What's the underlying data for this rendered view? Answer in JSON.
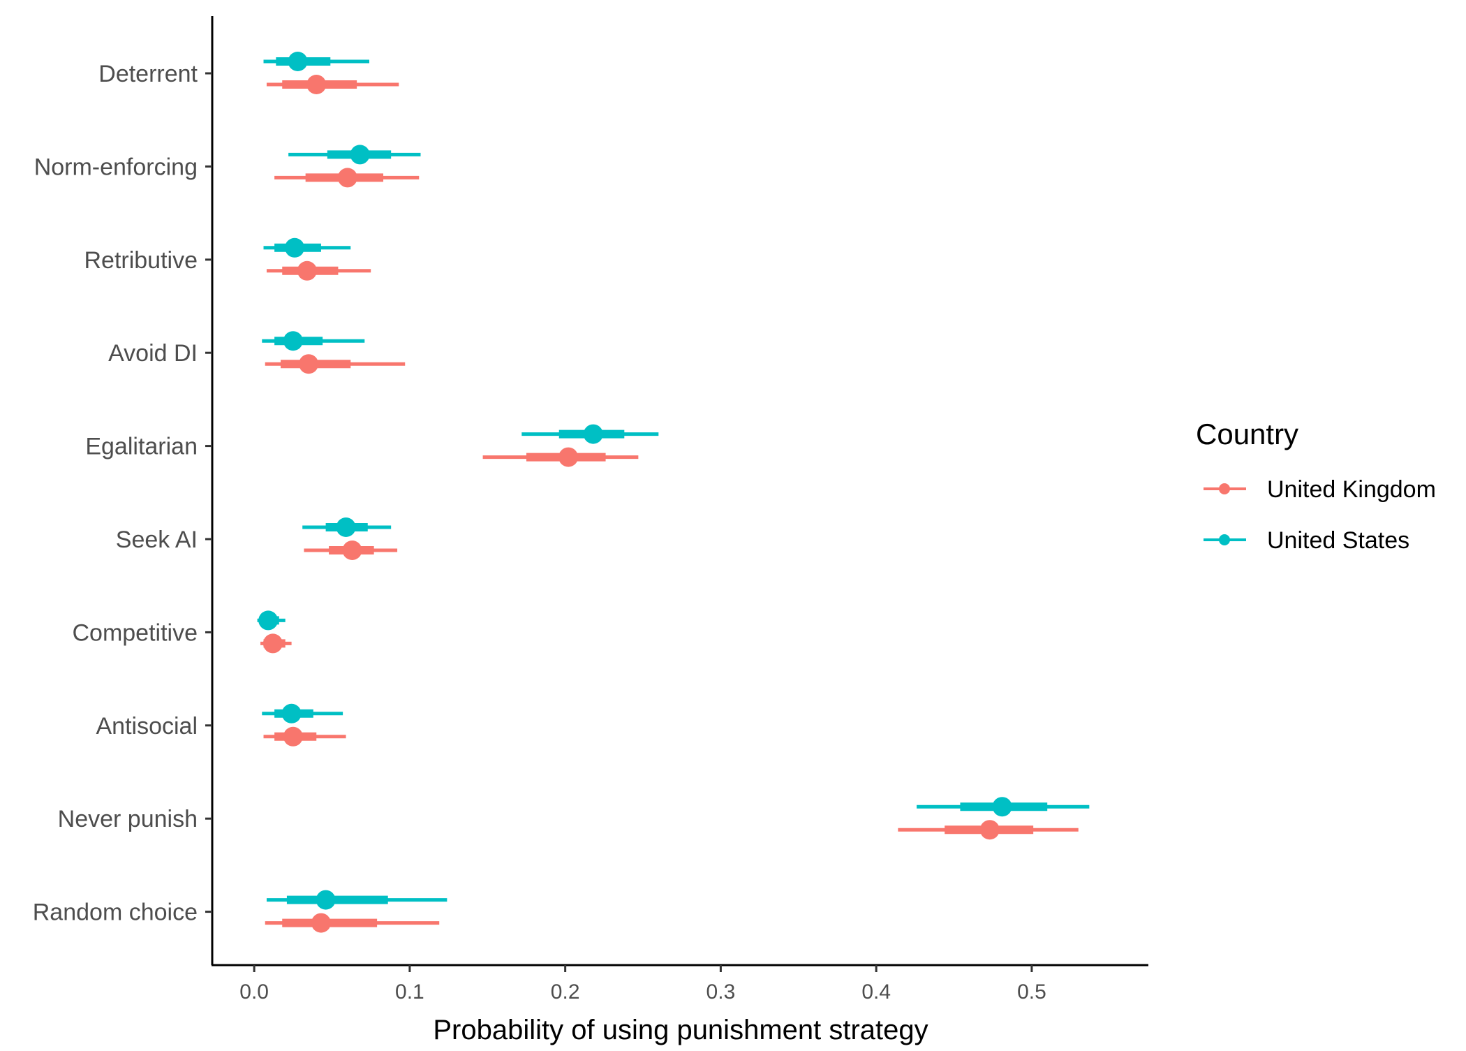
{
  "chart_data": {
    "type": "pointrange",
    "orientation": "horizontal",
    "xlabel": "Probability of using punishment strategy",
    "ylabel": "",
    "xlim": [
      -0.027,
      0.575
    ],
    "xticks": [
      0.0,
      0.1,
      0.2,
      0.3,
      0.4,
      0.5
    ],
    "xtick_labels": [
      "0.0",
      "0.1",
      "0.2",
      "0.3",
      "0.4",
      "0.5"
    ],
    "grid": false,
    "legend": {
      "title": "Country",
      "position": "right",
      "entries": [
        "United Kingdom",
        "United States"
      ]
    },
    "categories": [
      "Deterrent",
      "Norm-enforcing",
      "Retributive",
      "Avoid DI",
      "Egalitarian",
      "Seek AI",
      "Competitive",
      "Antisocial",
      "Never punish",
      "Random choice"
    ],
    "series": [
      {
        "name": "United Kingdom",
        "color": "#F8766D",
        "estimate": [
          0.04,
          0.06,
          0.034,
          0.035,
          0.202,
          0.063,
          0.012,
          0.025,
          0.473,
          0.043
        ],
        "inner_low": [
          0.018,
          0.033,
          0.018,
          0.017,
          0.175,
          0.048,
          0.006,
          0.013,
          0.444,
          0.018
        ],
        "inner_high": [
          0.066,
          0.083,
          0.054,
          0.062,
          0.226,
          0.077,
          0.02,
          0.04,
          0.501,
          0.079
        ],
        "outer_low": [
          0.008,
          0.013,
          0.008,
          0.007,
          0.147,
          0.032,
          0.004,
          0.006,
          0.414,
          0.007
        ],
        "outer_high": [
          0.093,
          0.106,
          0.075,
          0.097,
          0.247,
          0.092,
          0.024,
          0.059,
          0.53,
          0.119
        ]
      },
      {
        "name": "United States",
        "color": "#00BFC4",
        "estimate": [
          0.028,
          0.068,
          0.026,
          0.025,
          0.218,
          0.059,
          0.009,
          0.024,
          0.481,
          0.046
        ],
        "inner_low": [
          0.014,
          0.047,
          0.013,
          0.013,
          0.196,
          0.046,
          0.004,
          0.013,
          0.454,
          0.021
        ],
        "inner_high": [
          0.049,
          0.088,
          0.043,
          0.044,
          0.238,
          0.073,
          0.016,
          0.038,
          0.51,
          0.086
        ],
        "outer_low": [
          0.006,
          0.022,
          0.006,
          0.005,
          0.172,
          0.031,
          0.002,
          0.005,
          0.426,
          0.008
        ],
        "outer_high": [
          0.074,
          0.107,
          0.062,
          0.071,
          0.26,
          0.088,
          0.02,
          0.057,
          0.537,
          0.124
        ]
      }
    ]
  }
}
